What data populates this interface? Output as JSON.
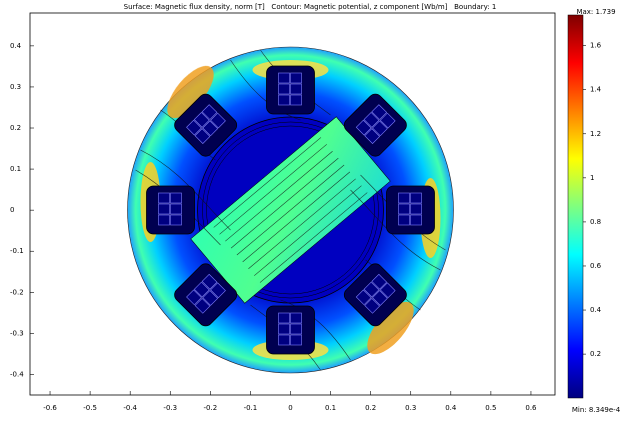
{
  "chart_data": {
    "type": "field",
    "title": "Surface: Magnetic flux density, norm [T]   Contour: Magnetic potential, z component [Wb/m]   Boundary: 1",
    "xlim": [
      -0.65,
      0.66
    ],
    "ylim": [
      -0.45,
      0.48
    ],
    "xticks": [
      -0.6,
      -0.5,
      -0.4,
      -0.3,
      -0.2,
      -0.1,
      0,
      0.1,
      0.2,
      0.3,
      0.4,
      0.5,
      0.6
    ],
    "yticks": [
      -0.4,
      -0.3,
      -0.2,
      -0.1,
      0,
      0.1,
      0.2,
      0.3,
      0.4
    ],
    "colorbar": {
      "lim": [
        0.0008349,
        1.739
      ],
      "ticks": [
        0.2,
        0.4,
        0.6,
        0.8,
        1,
        1.2,
        1.4,
        1.6
      ],
      "max_label": "Max: 1.739",
      "min_label": "Min: 8.349e-4",
      "colors": [
        "#00007f",
        "#0000ff",
        "#007fff",
        "#00ffff",
        "#7fff7f",
        "#ffff00",
        "#ff7f00",
        "#ff0000",
        "#7f0000"
      ]
    }
  }
}
